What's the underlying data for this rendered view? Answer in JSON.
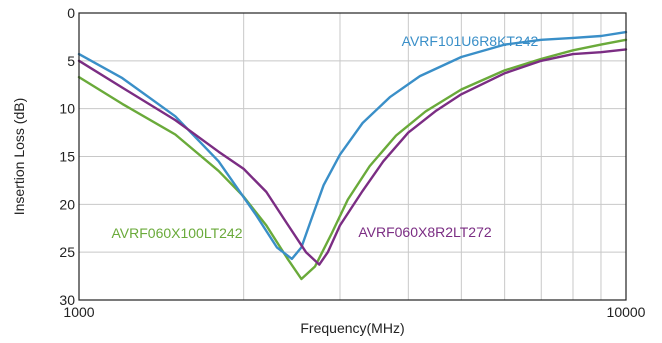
{
  "chart_data": {
    "type": "line",
    "title": "",
    "xlabel": "Frequency(MHz)",
    "ylabel": "Insertion Loss (dB)",
    "x_scale": "log",
    "xlim": [
      1000,
      10000
    ],
    "ylim": [
      0,
      30
    ],
    "y_inverted": true,
    "grid": true,
    "x_tick_labels": [
      "1000",
      "10000"
    ],
    "y_ticks": [
      0,
      5,
      10,
      15,
      20,
      25,
      30
    ],
    "series": [
      {
        "name": "AVRF101U6R8KT242",
        "color": "#3a8fc8",
        "x": [
          1000,
          1200,
          1500,
          1800,
          2100,
          2300,
          2450,
          2550,
          2650,
          2800,
          3000,
          3300,
          3700,
          4200,
          5000,
          6000,
          7000,
          8000,
          9000,
          10000
        ],
        "y": [
          4.3,
          6.8,
          10.8,
          15.5,
          21.0,
          24.5,
          25.7,
          24.5,
          21.8,
          18.0,
          14.8,
          11.5,
          8.8,
          6.6,
          4.6,
          3.3,
          2.8,
          2.6,
          2.4,
          2.0
        ]
      },
      {
        "name": "AVRF060X8R2LT272",
        "color": "#7b2d83",
        "x": [
          1000,
          1200,
          1500,
          1800,
          2000,
          2200,
          2400,
          2600,
          2750,
          2850,
          3000,
          3300,
          3600,
          4000,
          4500,
          5000,
          6000,
          7000,
          8000,
          9000,
          10000
        ],
        "y": [
          5.0,
          7.8,
          11.2,
          14.5,
          16.3,
          18.7,
          22.0,
          25.0,
          26.3,
          25.0,
          22.2,
          18.6,
          15.5,
          12.5,
          10.2,
          8.5,
          6.3,
          5.0,
          4.3,
          4.1,
          3.8
        ]
      },
      {
        "name": "AVRF060X100LT242",
        "color": "#6aaa3a",
        "x": [
          1000,
          1200,
          1500,
          1800,
          2000,
          2200,
          2400,
          2550,
          2700,
          2900,
          3100,
          3400,
          3800,
          4300,
          5000,
          6000,
          7000,
          8000,
          9000,
          10000
        ],
        "y": [
          6.7,
          9.5,
          12.7,
          16.5,
          19.2,
          22.2,
          25.6,
          27.8,
          26.5,
          23.0,
          19.5,
          16.0,
          12.8,
          10.3,
          8.0,
          6.0,
          4.8,
          3.9,
          3.3,
          2.8
        ]
      }
    ]
  }
}
